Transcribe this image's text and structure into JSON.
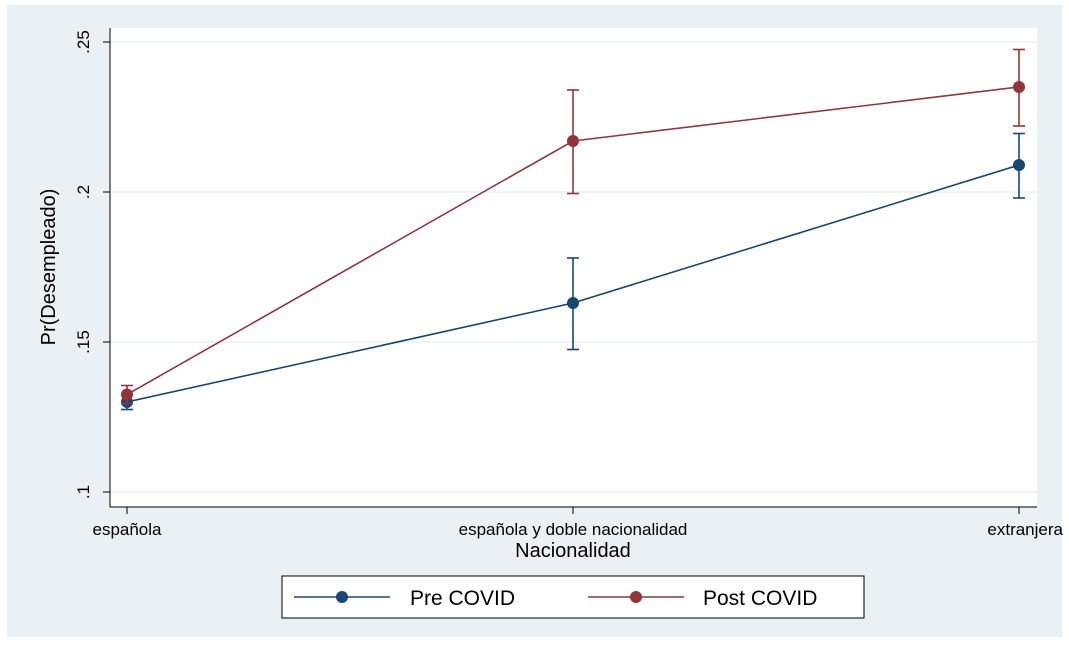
{
  "chart_data": {
    "type": "line",
    "title": "",
    "xlabel": "Nacionalidad",
    "ylabel": "Pr(Desempleado)",
    "categories": [
      "española",
      "española y doble nacionalidad",
      "extranjera"
    ],
    "ylim": [
      0.1,
      0.25
    ],
    "yticks": [
      0.1,
      0.15,
      0.2,
      0.25
    ],
    "ytick_labels": [
      ".1",
      ".15",
      ".2",
      ".25"
    ],
    "grid": true,
    "legend_position": "bottom",
    "series": [
      {
        "name": "Pre COVID",
        "color": "#1a476f",
        "values": [
          0.13,
          0.163,
          0.209
        ],
        "ci_low": [
          0.1275,
          0.1475,
          0.198
        ],
        "ci_high": [
          0.1325,
          0.178,
          0.2195
        ]
      },
      {
        "name": "Post COVID",
        "color": "#90353b",
        "values": [
          0.1325,
          0.217,
          0.235
        ],
        "ci_low": [
          0.1295,
          0.1995,
          0.222
        ],
        "ci_high": [
          0.1355,
          0.234,
          0.2475
        ]
      }
    ]
  }
}
